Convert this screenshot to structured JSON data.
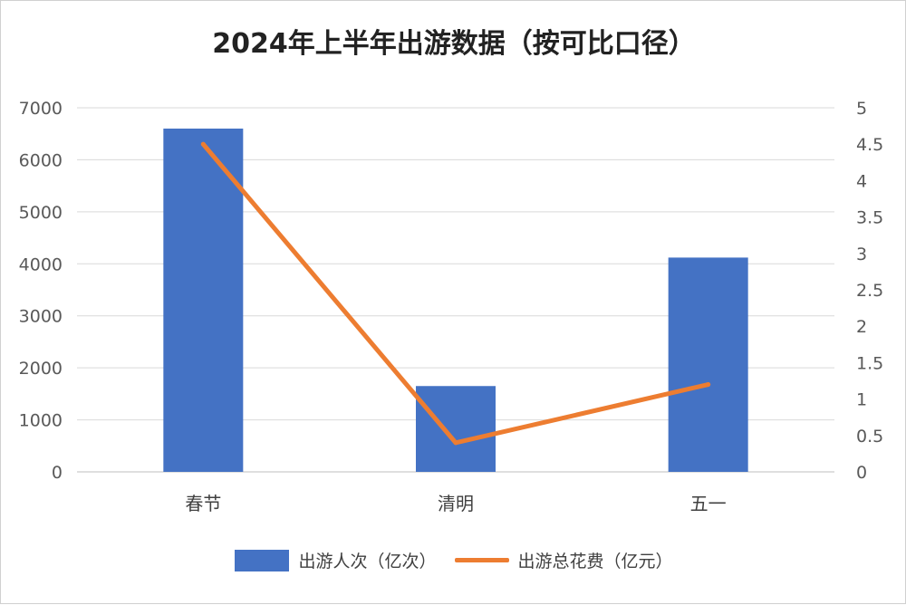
{
  "chart_data": {
    "type": "bar",
    "title": "2024年上半年出游数据（按可比口径）",
    "categories": [
      "春节",
      "清明",
      "五一"
    ],
    "series": [
      {
        "name": "出游人次（亿次）",
        "type": "bar",
        "axis": "left",
        "color": "#4472C4",
        "values": [
          6600,
          1650,
          4120
        ]
      },
      {
        "name": "出游总花费（亿元）",
        "type": "line",
        "axis": "right",
        "color": "#ED7D31",
        "values": [
          4.5,
          0.4,
          1.2
        ]
      }
    ],
    "y_left": {
      "ylim": [
        0,
        7000
      ],
      "ticks": [
        "0",
        "1000",
        "2000",
        "3000",
        "4000",
        "5000",
        "6000",
        "7000"
      ]
    },
    "y_right": {
      "ylim": [
        0,
        5
      ],
      "ticks": [
        "0",
        "0.5",
        "1",
        "1.5",
        "2",
        "2.5",
        "3",
        "3.5",
        "4",
        "4.5",
        "5"
      ]
    },
    "grid": true,
    "legend": "bottom"
  }
}
